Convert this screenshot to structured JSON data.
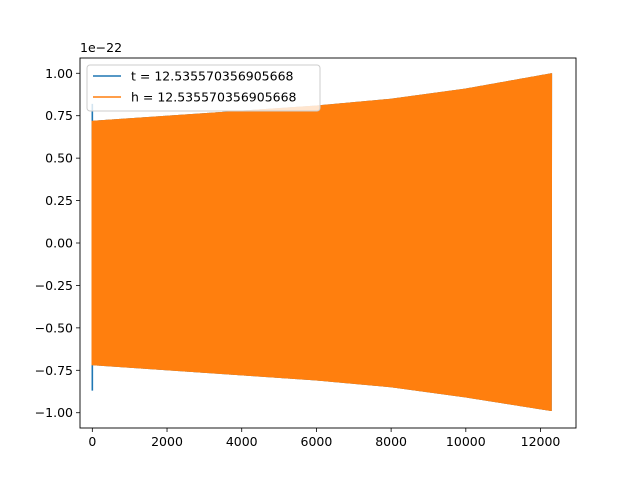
{
  "chart_data": {
    "type": "line",
    "title": "",
    "xlabel": "",
    "ylabel": "",
    "offset_text": "1e−22",
    "xlim": [
      -330,
      12950
    ],
    "ylim": [
      -1.09,
      1.09
    ],
    "x_ticks": [
      {
        "value": 0,
        "label": "0"
      },
      {
        "value": 2000,
        "label": "2000"
      },
      {
        "value": 4000,
        "label": "4000"
      },
      {
        "value": 6000,
        "label": "6000"
      },
      {
        "value": 8000,
        "label": "8000"
      },
      {
        "value": 10000,
        "label": "10000"
      },
      {
        "value": 12000,
        "label": "12000"
      }
    ],
    "y_ticks": [
      {
        "value": 1.0,
        "label": "1.00"
      },
      {
        "value": 0.75,
        "label": "0.75"
      },
      {
        "value": 0.5,
        "label": "0.50"
      },
      {
        "value": 0.25,
        "label": "0.25"
      },
      {
        "value": 0.0,
        "label": "0.00"
      },
      {
        "value": -0.25,
        "label": "−0.25"
      },
      {
        "value": -0.5,
        "label": "−0.50"
      },
      {
        "value": -0.75,
        "label": "−0.75"
      },
      {
        "value": -1.0,
        "label": "−1.00"
      }
    ],
    "grid": false,
    "legend_position": "top-left",
    "series": [
      {
        "name": "t = 12.535570356905668",
        "color": "#1f77b4",
        "x_range": [
          0,
          12290
        ],
        "envelope": {
          "x": [
            0,
            2000,
            4000,
            6000,
            8000,
            10000,
            12290
          ],
          "upper": [
            0.72,
            0.75,
            0.78,
            0.81,
            0.85,
            0.91,
            1.0
          ],
          "lower": [
            -0.72,
            -0.75,
            -0.78,
            -0.81,
            -0.85,
            -0.91,
            -0.99
          ]
        },
        "start_spike": [
          0.82,
          -0.87
        ]
      },
      {
        "name": "h = 12.535570356905668",
        "color": "#ff7f0e",
        "x_range": [
          0,
          12290
        ],
        "envelope": {
          "x": [
            0,
            2000,
            4000,
            6000,
            8000,
            10000,
            12290
          ],
          "upper": [
            0.72,
            0.75,
            0.78,
            0.81,
            0.85,
            0.91,
            1.0
          ],
          "lower": [
            -0.72,
            -0.75,
            -0.78,
            -0.81,
            -0.85,
            -0.91,
            -0.99
          ]
        },
        "start_spike": [
          0.61,
          -0.72
        ]
      }
    ]
  }
}
